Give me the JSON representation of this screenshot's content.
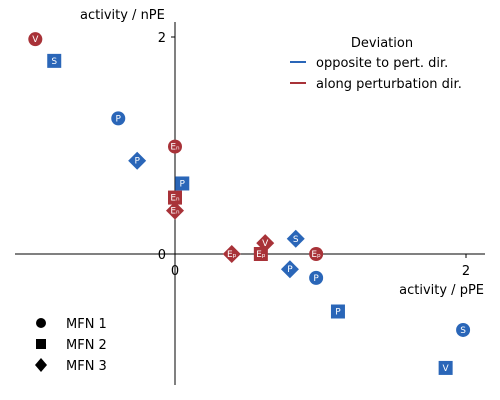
{
  "chart_data": {
    "type": "scatter",
    "xlabel": "activity / pPE",
    "ylabel": "activity / nPE",
    "xlim": [
      -1.1,
      2.15
    ],
    "ylim": [
      -1.2,
      2.15
    ],
    "xticks": [
      {
        "value": 0,
        "label": "0"
      },
      {
        "value": 2,
        "label": "2"
      }
    ],
    "yticks": [
      {
        "value": 0,
        "label": "0"
      },
      {
        "value": 2,
        "label": "2"
      }
    ],
    "grid": false,
    "colors": {
      "opposite": "#2a66b8",
      "along": "#a83238"
    },
    "legend": {
      "title": "Deviation",
      "placement": "top-right",
      "entries": [
        {
          "key": "opposite",
          "label": "opposite to pert. dir."
        },
        {
          "key": "along",
          "label": "along perturbation dir."
        }
      ]
    },
    "marker_legend": {
      "placement": "bottom-left",
      "entries": [
        {
          "shape": "circle",
          "label": "MFN 1"
        },
        {
          "shape": "square",
          "label": "MFN 2"
        },
        {
          "shape": "diamond",
          "label": "MFN 3"
        }
      ]
    },
    "points": [
      {
        "x": -0.96,
        "y": 1.98,
        "shape": "circle",
        "group": "along",
        "label": "V"
      },
      {
        "x": -0.83,
        "y": 1.78,
        "shape": "square",
        "group": "opposite",
        "label": "S"
      },
      {
        "x": -0.39,
        "y": 1.25,
        "shape": "circle",
        "group": "opposite",
        "label": "P"
      },
      {
        "x": -0.26,
        "y": 0.86,
        "shape": "diamond",
        "group": "opposite",
        "label": "P"
      },
      {
        "x": 0.0,
        "y": 0.99,
        "shape": "circle",
        "group": "along",
        "label": "Eₙ"
      },
      {
        "x": 0.05,
        "y": 0.65,
        "shape": "square",
        "group": "opposite",
        "label": "P"
      },
      {
        "x": 0.0,
        "y": 0.52,
        "shape": "square",
        "group": "along",
        "label": "Eₙ"
      },
      {
        "x": 0.0,
        "y": 0.4,
        "shape": "diamond",
        "group": "along",
        "label": "Eₙ"
      },
      {
        "x": 0.39,
        "y": 0.0,
        "shape": "diamond",
        "group": "along",
        "label": "Eₚ"
      },
      {
        "x": 0.59,
        "y": 0.0,
        "shape": "square",
        "group": "along",
        "label": "Eₚ"
      },
      {
        "x": 0.62,
        "y": 0.1,
        "shape": "diamond",
        "group": "along",
        "label": "V"
      },
      {
        "x": 0.83,
        "y": 0.14,
        "shape": "diamond",
        "group": "opposite",
        "label": "S"
      },
      {
        "x": 0.97,
        "y": 0.0,
        "shape": "circle",
        "group": "along",
        "label": "Eₚ"
      },
      {
        "x": 0.79,
        "y": -0.14,
        "shape": "diamond",
        "group": "opposite",
        "label": "P"
      },
      {
        "x": 0.97,
        "y": -0.22,
        "shape": "circle",
        "group": "opposite",
        "label": "P"
      },
      {
        "x": 1.12,
        "y": -0.53,
        "shape": "square",
        "group": "opposite",
        "label": "P"
      },
      {
        "x": 1.98,
        "y": -0.7,
        "shape": "circle",
        "group": "opposite",
        "label": "S"
      },
      {
        "x": 1.86,
        "y": -1.05,
        "shape": "square",
        "group": "opposite",
        "label": "V"
      }
    ]
  }
}
